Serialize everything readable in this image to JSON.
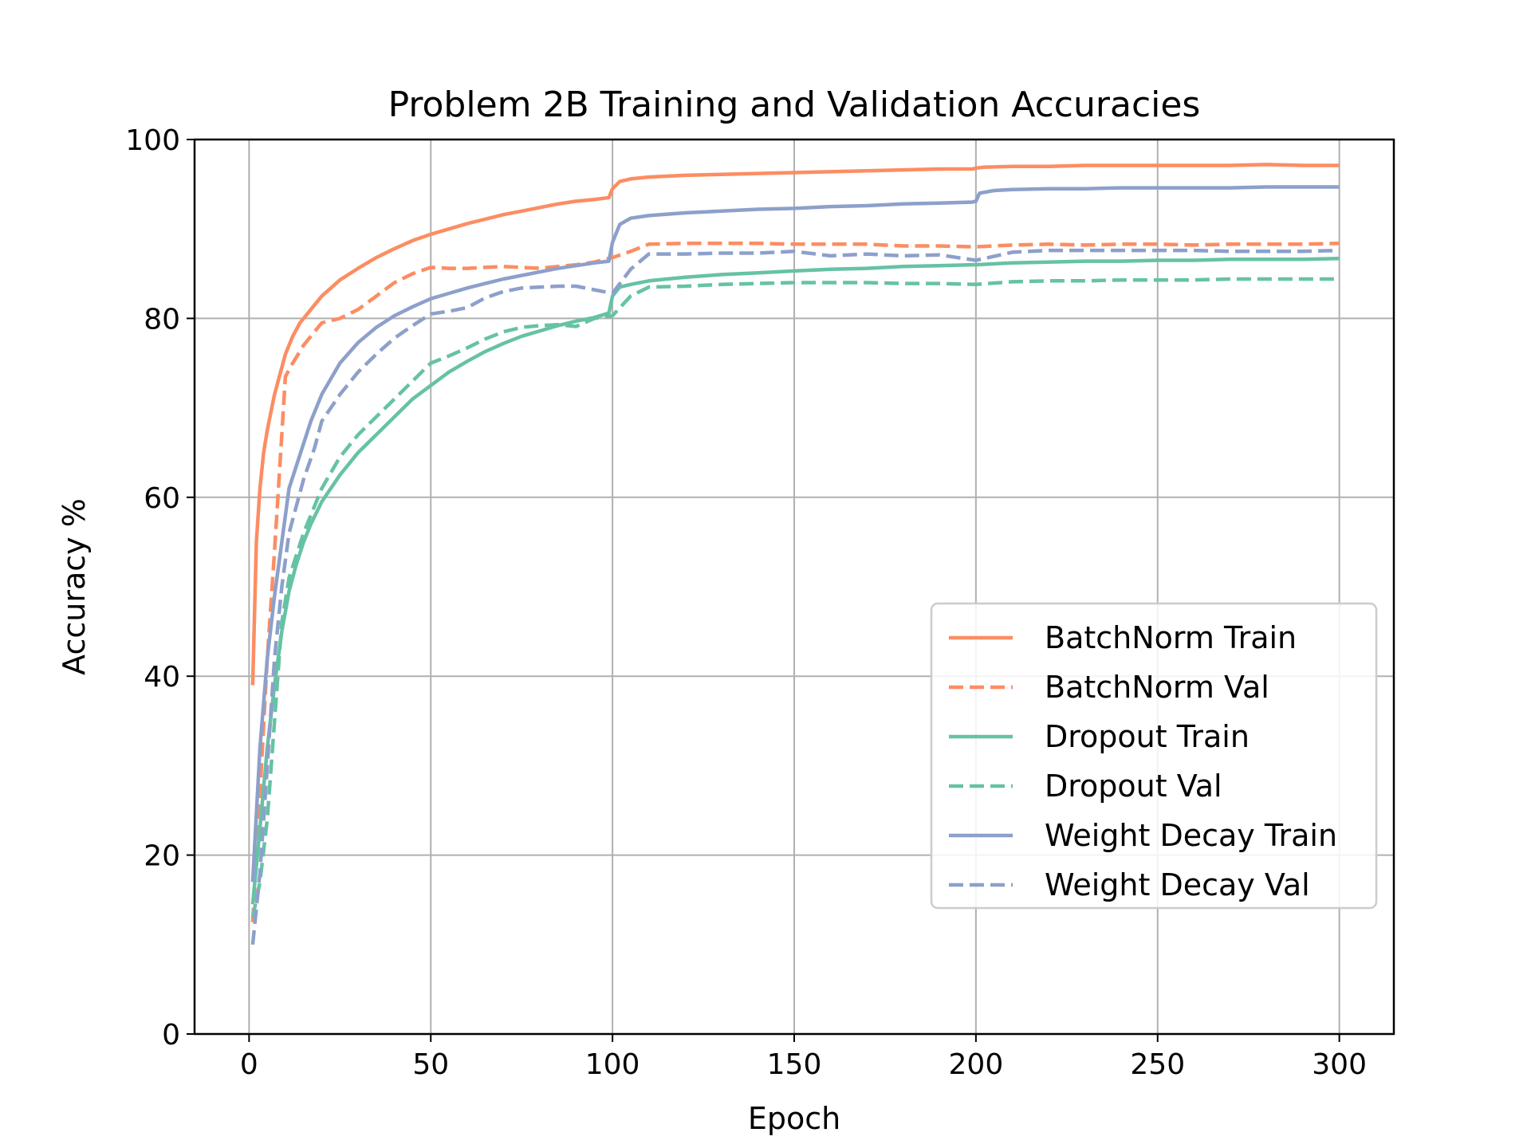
{
  "chart_data": {
    "type": "line",
    "title": "Problem 2B Training and Validation Accuracies",
    "xlabel": "Epoch",
    "ylabel": "Accuracy %",
    "xlim": [
      -15,
      315
    ],
    "ylim": [
      0,
      100
    ],
    "xticks": [
      0,
      50,
      100,
      150,
      200,
      250,
      300
    ],
    "yticks": [
      0,
      20,
      40,
      60,
      80,
      100
    ],
    "grid": true,
    "legend_position": "center-right",
    "series": [
      {
        "name": "BatchNorm Train",
        "color": "#fc8d62",
        "style": "solid",
        "points": [
          [
            1,
            39
          ],
          [
            2,
            55
          ],
          [
            3,
            61
          ],
          [
            4,
            65
          ],
          [
            5,
            67.5
          ],
          [
            6,
            69.5
          ],
          [
            7,
            71.5
          ],
          [
            8,
            73
          ],
          [
            9,
            74.5
          ],
          [
            10,
            76
          ],
          [
            12,
            78
          ],
          [
            14,
            79.5
          ],
          [
            16,
            80.5
          ],
          [
            18,
            81.5
          ],
          [
            20,
            82.5
          ],
          [
            25,
            84.3
          ],
          [
            30,
            85.6
          ],
          [
            35,
            86.8
          ],
          [
            40,
            87.8
          ],
          [
            45,
            88.7
          ],
          [
            50,
            89.4
          ],
          [
            55,
            90
          ],
          [
            60,
            90.6
          ],
          [
            65,
            91.1
          ],
          [
            70,
            91.6
          ],
          [
            75,
            92
          ],
          [
            80,
            92.4
          ],
          [
            85,
            92.8
          ],
          [
            90,
            93.1
          ],
          [
            95,
            93.3
          ],
          [
            99,
            93.5
          ],
          [
            100,
            94.5
          ],
          [
            102,
            95.3
          ],
          [
            105,
            95.6
          ],
          [
            110,
            95.8
          ],
          [
            120,
            96
          ],
          [
            130,
            96.1
          ],
          [
            140,
            96.2
          ],
          [
            150,
            96.3
          ],
          [
            160,
            96.4
          ],
          [
            170,
            96.5
          ],
          [
            180,
            96.6
          ],
          [
            190,
            96.7
          ],
          [
            199,
            96.7
          ],
          [
            200,
            96.8
          ],
          [
            202,
            96.9
          ],
          [
            210,
            97
          ],
          [
            220,
            97
          ],
          [
            230,
            97.1
          ],
          [
            240,
            97.1
          ],
          [
            250,
            97.1
          ],
          [
            260,
            97.1
          ],
          [
            270,
            97.1
          ],
          [
            280,
            97.2
          ],
          [
            290,
            97.1
          ],
          [
            300,
            97.1
          ]
        ]
      },
      {
        "name": "BatchNorm Val",
        "color": "#fc8d62",
        "style": "dashed",
        "points": [
          [
            1,
            12.5
          ],
          [
            3,
            27
          ],
          [
            5,
            42
          ],
          [
            7,
            54
          ],
          [
            9,
            67
          ],
          [
            10,
            73.5
          ],
          [
            12,
            75
          ],
          [
            15,
            77
          ],
          [
            20,
            79.5
          ],
          [
            25,
            80
          ],
          [
            30,
            81
          ],
          [
            35,
            82.5
          ],
          [
            40,
            84
          ],
          [
            45,
            85
          ],
          [
            50,
            85.7
          ],
          [
            55,
            85.6
          ],
          [
            60,
            85.6
          ],
          [
            65,
            85.7
          ],
          [
            70,
            85.8
          ],
          [
            75,
            85.7
          ],
          [
            80,
            85.6
          ],
          [
            85,
            85.8
          ],
          [
            90,
            86
          ],
          [
            95,
            86.3
          ],
          [
            100,
            86.8
          ],
          [
            105,
            87.5
          ],
          [
            110,
            88.3
          ],
          [
            120,
            88.4
          ],
          [
            130,
            88.4
          ],
          [
            140,
            88.4
          ],
          [
            150,
            88.3
          ],
          [
            160,
            88.3
          ],
          [
            170,
            88.3
          ],
          [
            180,
            88.1
          ],
          [
            190,
            88.1
          ],
          [
            200,
            88
          ],
          [
            210,
            88.2
          ],
          [
            220,
            88.3
          ],
          [
            230,
            88.2
          ],
          [
            240,
            88.3
          ],
          [
            250,
            88.3
          ],
          [
            260,
            88.2
          ],
          [
            270,
            88.3
          ],
          [
            280,
            88.3
          ],
          [
            290,
            88.3
          ],
          [
            300,
            88.4
          ]
        ]
      },
      {
        "name": "Dropout Train",
        "color": "#66c2a5",
        "style": "solid",
        "points": [
          [
            1,
            14.5
          ],
          [
            3,
            23
          ],
          [
            5,
            32
          ],
          [
            7,
            39
          ],
          [
            9,
            45
          ],
          [
            11,
            49.5
          ],
          [
            13,
            52.5
          ],
          [
            15,
            55
          ],
          [
            17,
            57
          ],
          [
            20,
            59.5
          ],
          [
            25,
            62.5
          ],
          [
            30,
            65
          ],
          [
            35,
            67
          ],
          [
            40,
            69
          ],
          [
            45,
            71
          ],
          [
            50,
            72.5
          ],
          [
            55,
            74
          ],
          [
            60,
            75.2
          ],
          [
            65,
            76.3
          ],
          [
            70,
            77.2
          ],
          [
            75,
            78
          ],
          [
            80,
            78.6
          ],
          [
            85,
            79.2
          ],
          [
            90,
            79.7
          ],
          [
            95,
            80.1
          ],
          [
            99,
            80.6
          ],
          [
            100,
            82.5
          ],
          [
            102,
            83.5
          ],
          [
            105,
            83.8
          ],
          [
            110,
            84.2
          ],
          [
            120,
            84.6
          ],
          [
            130,
            84.9
          ],
          [
            140,
            85.1
          ],
          [
            150,
            85.3
          ],
          [
            160,
            85.5
          ],
          [
            170,
            85.6
          ],
          [
            180,
            85.8
          ],
          [
            190,
            85.9
          ],
          [
            199,
            86
          ],
          [
            200,
            86
          ],
          [
            210,
            86.2
          ],
          [
            220,
            86.3
          ],
          [
            230,
            86.4
          ],
          [
            240,
            86.4
          ],
          [
            250,
            86.5
          ],
          [
            260,
            86.5
          ],
          [
            270,
            86.6
          ],
          [
            280,
            86.6
          ],
          [
            290,
            86.6
          ],
          [
            300,
            86.7
          ]
        ]
      },
      {
        "name": "Dropout Val",
        "color": "#66c2a5",
        "style": "dashed",
        "points": [
          [
            1,
            13
          ],
          [
            3,
            17
          ],
          [
            5,
            24
          ],
          [
            7,
            35
          ],
          [
            9,
            46
          ],
          [
            11,
            51
          ],
          [
            13,
            53.5
          ],
          [
            15,
            56
          ],
          [
            18,
            59
          ],
          [
            20,
            61
          ],
          [
            25,
            64.5
          ],
          [
            30,
            67
          ],
          [
            35,
            69
          ],
          [
            40,
            71
          ],
          [
            45,
            73
          ],
          [
            50,
            75
          ],
          [
            55,
            75.8
          ],
          [
            60,
            76.7
          ],
          [
            65,
            77.7
          ],
          [
            70,
            78.5
          ],
          [
            75,
            79
          ],
          [
            80,
            79.2
          ],
          [
            85,
            79.3
          ],
          [
            90,
            79.1
          ],
          [
            95,
            80
          ],
          [
            100,
            80.3
          ],
          [
            105,
            82.5
          ],
          [
            110,
            83.5
          ],
          [
            120,
            83.6
          ],
          [
            130,
            83.8
          ],
          [
            140,
            83.9
          ],
          [
            150,
            84
          ],
          [
            160,
            84
          ],
          [
            170,
            84
          ],
          [
            180,
            83.9
          ],
          [
            190,
            83.9
          ],
          [
            200,
            83.8
          ],
          [
            210,
            84.1
          ],
          [
            220,
            84.2
          ],
          [
            230,
            84.2
          ],
          [
            240,
            84.3
          ],
          [
            250,
            84.3
          ],
          [
            260,
            84.3
          ],
          [
            270,
            84.4
          ],
          [
            280,
            84.4
          ],
          [
            290,
            84.4
          ],
          [
            300,
            84.4
          ]
        ]
      },
      {
        "name": "Weight Decay Train",
        "color": "#8da0cb",
        "style": "solid",
        "points": [
          [
            1,
            17
          ],
          [
            3,
            32
          ],
          [
            5,
            42
          ],
          [
            7,
            49
          ],
          [
            9,
            55
          ],
          [
            11,
            61
          ],
          [
            13,
            63.5
          ],
          [
            15,
            66
          ],
          [
            17,
            68.5
          ],
          [
            20,
            71.5
          ],
          [
            25,
            75
          ],
          [
            30,
            77.3
          ],
          [
            35,
            79
          ],
          [
            40,
            80.3
          ],
          [
            45,
            81.3
          ],
          [
            50,
            82.2
          ],
          [
            55,
            82.8
          ],
          [
            60,
            83.4
          ],
          [
            65,
            83.9
          ],
          [
            70,
            84.4
          ],
          [
            75,
            84.8
          ],
          [
            80,
            85.2
          ],
          [
            85,
            85.6
          ],
          [
            90,
            85.9
          ],
          [
            95,
            86.2
          ],
          [
            99,
            86.4
          ],
          [
            100,
            88.5
          ],
          [
            102,
            90.5
          ],
          [
            105,
            91.2
          ],
          [
            110,
            91.5
          ],
          [
            120,
            91.8
          ],
          [
            130,
            92
          ],
          [
            140,
            92.2
          ],
          [
            150,
            92.3
          ],
          [
            160,
            92.5
          ],
          [
            170,
            92.6
          ],
          [
            180,
            92.8
          ],
          [
            190,
            92.9
          ],
          [
            199,
            93
          ],
          [
            200,
            93.1
          ],
          [
            201,
            94
          ],
          [
            205,
            94.3
          ],
          [
            210,
            94.4
          ],
          [
            220,
            94.5
          ],
          [
            230,
            94.5
          ],
          [
            240,
            94.6
          ],
          [
            250,
            94.6
          ],
          [
            260,
            94.6
          ],
          [
            270,
            94.6
          ],
          [
            280,
            94.7
          ],
          [
            290,
            94.7
          ],
          [
            300,
            94.7
          ]
        ]
      },
      {
        "name": "Weight Decay Val",
        "color": "#8da0cb",
        "style": "dashed",
        "points": [
          [
            1,
            10
          ],
          [
            3,
            18
          ],
          [
            5,
            30
          ],
          [
            7,
            42
          ],
          [
            9,
            50
          ],
          [
            11,
            56
          ],
          [
            13,
            59
          ],
          [
            15,
            62
          ],
          [
            18,
            65.5
          ],
          [
            20,
            68.5
          ],
          [
            25,
            71.5
          ],
          [
            30,
            74
          ],
          [
            35,
            76
          ],
          [
            40,
            77.8
          ],
          [
            45,
            79.2
          ],
          [
            50,
            80.5
          ],
          [
            55,
            80.8
          ],
          [
            60,
            81.2
          ],
          [
            65,
            82.3
          ],
          [
            70,
            83
          ],
          [
            75,
            83.4
          ],
          [
            80,
            83.5
          ],
          [
            85,
            83.6
          ],
          [
            90,
            83.6
          ],
          [
            95,
            83.2
          ],
          [
            100,
            82.8
          ],
          [
            105,
            85.5
          ],
          [
            110,
            87.2
          ],
          [
            120,
            87.2
          ],
          [
            130,
            87.3
          ],
          [
            140,
            87.3
          ],
          [
            150,
            87.5
          ],
          [
            160,
            87
          ],
          [
            170,
            87.2
          ],
          [
            180,
            87
          ],
          [
            190,
            87.1
          ],
          [
            200,
            86.5
          ],
          [
            210,
            87.4
          ],
          [
            220,
            87.6
          ],
          [
            230,
            87.6
          ],
          [
            240,
            87.6
          ],
          [
            250,
            87.6
          ],
          [
            260,
            87.6
          ],
          [
            270,
            87.5
          ],
          [
            280,
            87.5
          ],
          [
            290,
            87.5
          ],
          [
            300,
            87.6
          ]
        ]
      }
    ]
  }
}
